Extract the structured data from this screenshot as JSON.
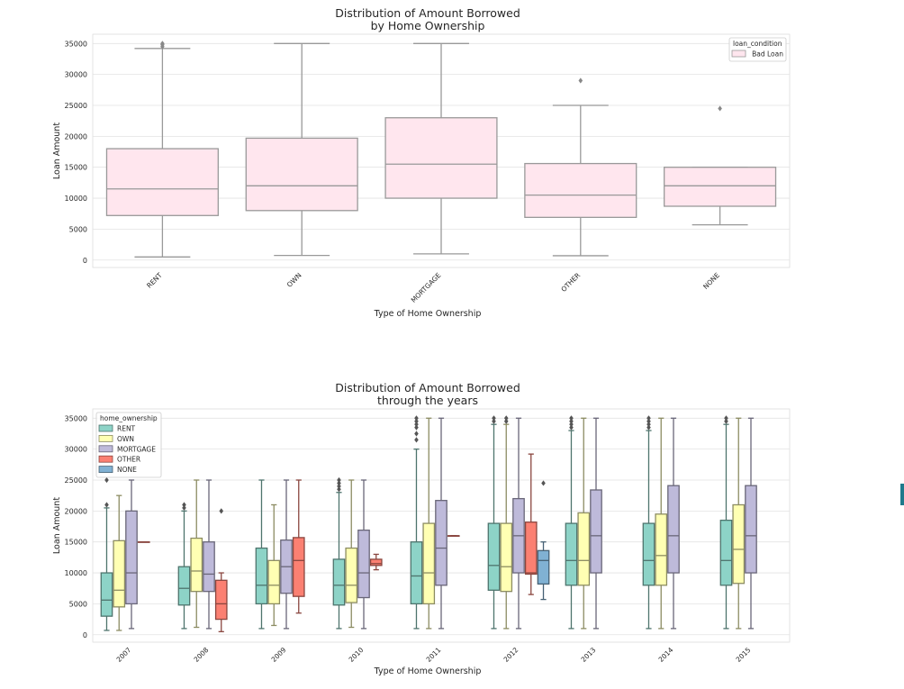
{
  "chart_data": [
    {
      "type": "box",
      "title": "Distribution of Amount Borrowed\nby Home Ownership",
      "xlabel": "Type of Home Ownership",
      "ylabel": "Loan Amount",
      "ylim": [
        -1200,
        36500
      ],
      "yticks": [
        0,
        5000,
        10000,
        15000,
        20000,
        25000,
        30000,
        35000
      ],
      "grid": true,
      "categories": [
        "RENT",
        "OWN",
        "MORTGAGE",
        "OTHER",
        "NONE"
      ],
      "legend": {
        "title": "loan_condition",
        "position": "top-right",
        "entries": [
          "Bad Loan"
        ]
      },
      "series": [
        {
          "name": "Bad Loan",
          "color": "#ffe6ee",
          "boxes": [
            {
              "category": "RENT",
              "min": 500,
              "q1": 7200,
              "median": 11500,
              "q3": 18000,
              "max": 34200,
              "outliers": [
                34500,
                34800,
                35000
              ]
            },
            {
              "category": "OWN",
              "min": 750,
              "q1": 8000,
              "median": 12000,
              "q3": 19700,
              "max": 35000,
              "outliers": []
            },
            {
              "category": "MORTGAGE",
              "min": 1000,
              "q1": 10000,
              "median": 15500,
              "q3": 23000,
              "max": 35000,
              "outliers": []
            },
            {
              "category": "OTHER",
              "min": 700,
              "q1": 6900,
              "median": 10500,
              "q3": 15600,
              "max": 25000,
              "outliers": [
                29000
              ]
            },
            {
              "category": "NONE",
              "min": 5700,
              "q1": 8700,
              "median": 12000,
              "q3": 15000,
              "max": 15000,
              "outliers": [
                24500
              ]
            }
          ]
        }
      ]
    },
    {
      "type": "box",
      "title": "Distribution of Amount Borrowed\nthrough the years",
      "xlabel": "Type of Home Ownership",
      "ylabel": "Loan Amount",
      "ylim": [
        -1200,
        36500
      ],
      "yticks": [
        0,
        5000,
        10000,
        15000,
        20000,
        25000,
        30000,
        35000
      ],
      "grid": true,
      "categories": [
        "2007",
        "2008",
        "2009",
        "2010",
        "2011",
        "2012",
        "2013",
        "2014",
        "2015"
      ],
      "legend": {
        "title": "home_ownership",
        "position": "top-left",
        "entries": [
          "RENT",
          "OWN",
          "MORTGAGE",
          "OTHER",
          "NONE"
        ]
      },
      "series": [
        {
          "name": "RENT",
          "color": "#8dd3c7",
          "boxes": [
            {
              "category": "2007",
              "min": 700,
              "q1": 3000,
              "median": 5600,
              "q3": 10000,
              "max": 20500,
              "outliers": [
                21000,
                25000
              ]
            },
            {
              "category": "2008",
              "min": 1000,
              "q1": 4800,
              "median": 7500,
              "q3": 11000,
              "max": 20000,
              "outliers": [
                20500,
                21000
              ]
            },
            {
              "category": "2009",
              "min": 1000,
              "q1": 5000,
              "median": 8000,
              "q3": 14000,
              "max": 25000,
              "outliers": []
            },
            {
              "category": "2010",
              "min": 1000,
              "q1": 4800,
              "median": 8000,
              "q3": 12200,
              "max": 23000,
              "outliers": [
                23500,
                24000,
                24500,
                25000
              ]
            },
            {
              "category": "2011",
              "min": 1000,
              "q1": 5000,
              "median": 9500,
              "q3": 15000,
              "max": 30000,
              "outliers": [
                31500,
                32500,
                33500,
                34000,
                34500,
                35000
              ]
            },
            {
              "category": "2012",
              "min": 1000,
              "q1": 7200,
              "median": 11200,
              "q3": 18000,
              "max": 34000,
              "outliers": [
                34500,
                35000
              ]
            },
            {
              "category": "2013",
              "min": 1000,
              "q1": 8000,
              "median": 12000,
              "q3": 18000,
              "max": 33000,
              "outliers": [
                33500,
                34000,
                34500,
                35000
              ]
            },
            {
              "category": "2014",
              "min": 1000,
              "q1": 8000,
              "median": 12000,
              "q3": 18000,
              "max": 33000,
              "outliers": [
                33500,
                34000,
                34500,
                35000
              ]
            },
            {
              "category": "2015",
              "min": 1000,
              "q1": 8000,
              "median": 12000,
              "q3": 18500,
              "max": 34000,
              "outliers": [
                34500,
                35000
              ]
            }
          ]
        },
        {
          "name": "OWN",
          "color": "#ffffb3",
          "boxes": [
            {
              "category": "2007",
              "min": 700,
              "q1": 4500,
              "median": 7200,
              "q3": 15200,
              "max": 22500,
              "outliers": []
            },
            {
              "category": "2008",
              "min": 1200,
              "q1": 7000,
              "median": 10300,
              "q3": 15600,
              "max": 25000,
              "outliers": []
            },
            {
              "category": "2009",
              "min": 1500,
              "q1": 5000,
              "median": 8000,
              "q3": 12000,
              "max": 21000,
              "outliers": []
            },
            {
              "category": "2010",
              "min": 1200,
              "q1": 5200,
              "median": 8000,
              "q3": 14000,
              "max": 25000,
              "outliers": []
            },
            {
              "category": "2011",
              "min": 1000,
              "q1": 5000,
              "median": 10000,
              "q3": 18000,
              "max": 35000,
              "outliers": []
            },
            {
              "category": "2012",
              "min": 1000,
              "q1": 7000,
              "median": 11000,
              "q3": 18000,
              "max": 34000,
              "outliers": [
                34500,
                35000
              ]
            },
            {
              "category": "2013",
              "min": 1000,
              "q1": 8000,
              "median": 12000,
              "q3": 19700,
              "max": 35000,
              "outliers": []
            },
            {
              "category": "2014",
              "min": 1000,
              "q1": 8000,
              "median": 12800,
              "q3": 19500,
              "max": 35000,
              "outliers": []
            },
            {
              "category": "2015",
              "min": 1000,
              "q1": 8300,
              "median": 13800,
              "q3": 21000,
              "max": 35000,
              "outliers": []
            }
          ]
        },
        {
          "name": "MORTGAGE",
          "color": "#bebada",
          "boxes": [
            {
              "category": "2007",
              "min": 1000,
              "q1": 5000,
              "median": 10000,
              "q3": 20000,
              "max": 25000,
              "outliers": []
            },
            {
              "category": "2008",
              "min": 1000,
              "q1": 7000,
              "median": 9800,
              "q3": 15000,
              "max": 25000,
              "outliers": []
            },
            {
              "category": "2009",
              "min": 1000,
              "q1": 6700,
              "median": 11000,
              "q3": 15300,
              "max": 25000,
              "outliers": []
            },
            {
              "category": "2010",
              "min": 1000,
              "q1": 6000,
              "median": 10000,
              "q3": 16900,
              "max": 25000,
              "outliers": []
            },
            {
              "category": "2011",
              "min": 1000,
              "q1": 8000,
              "median": 14000,
              "q3": 21700,
              "max": 35000,
              "outliers": []
            },
            {
              "category": "2012",
              "min": 1000,
              "q1": 10000,
              "median": 16000,
              "q3": 22000,
              "max": 35000,
              "outliers": []
            },
            {
              "category": "2013",
              "min": 1000,
              "q1": 10000,
              "median": 16000,
              "q3": 23400,
              "max": 35000,
              "outliers": []
            },
            {
              "category": "2014",
              "min": 1000,
              "q1": 10000,
              "median": 16000,
              "q3": 24100,
              "max": 35000,
              "outliers": []
            },
            {
              "category": "2015",
              "min": 1000,
              "q1": 10000,
              "median": 16000,
              "q3": 24100,
              "max": 35000,
              "outliers": []
            }
          ]
        },
        {
          "name": "OTHER",
          "color": "#fb8072",
          "boxes": [
            {
              "category": "2007",
              "min": 15000,
              "q1": 15000,
              "median": 15000,
              "q3": 15000,
              "max": 15000,
              "outliers": []
            },
            {
              "category": "2008",
              "min": 500,
              "q1": 2500,
              "median": 5000,
              "q3": 8800,
              "max": 10000,
              "outliers": [
                20000
              ]
            },
            {
              "category": "2009",
              "min": 3500,
              "q1": 6200,
              "median": 12000,
              "q3": 15700,
              "max": 25000,
              "outliers": []
            },
            {
              "category": "2010",
              "min": 10500,
              "q1": 11200,
              "median": 11500,
              "q3": 12200,
              "max": 13000,
              "outliers": []
            },
            {
              "category": "2011",
              "min": 16000,
              "q1": 16000,
              "median": 16000,
              "q3": 16000,
              "max": 16000,
              "outliers": []
            },
            {
              "category": "2012",
              "min": 6500,
              "q1": 9800,
              "median": 10000,
              "q3": 18200,
              "max": 29200,
              "outliers": []
            }
          ]
        },
        {
          "name": "NONE",
          "color": "#80b1d3",
          "boxes": [
            {
              "category": "2012",
              "min": 5700,
              "q1": 8200,
              "median": 12000,
              "q3": 13600,
              "max": 15000,
              "outliers": [
                24500
              ]
            }
          ]
        }
      ]
    }
  ]
}
